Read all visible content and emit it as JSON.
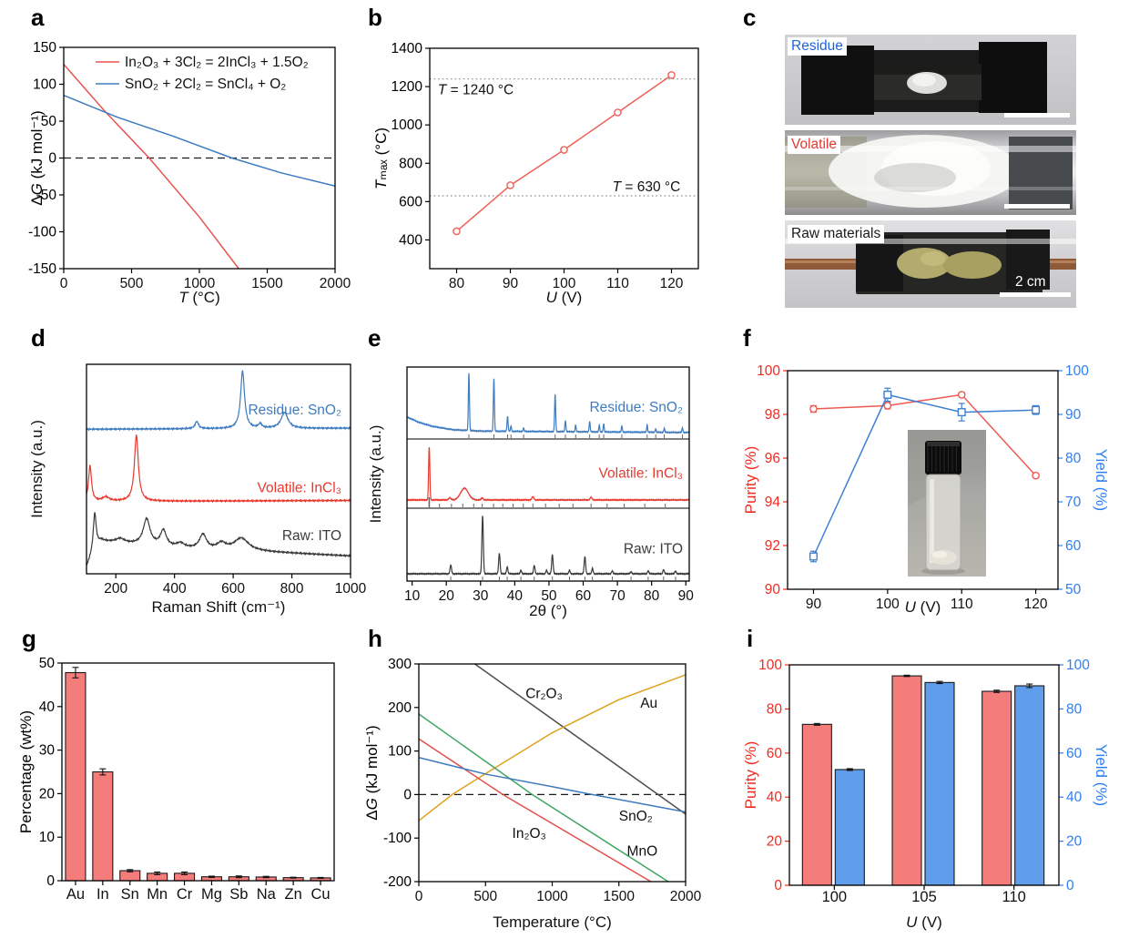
{
  "figure": {
    "panel_labels": {
      "a": "a",
      "b": "b",
      "c": "c",
      "d": "d",
      "e": "e",
      "f": "f",
      "g": "g",
      "h": "h",
      "i": "i"
    }
  },
  "chart_data": {
    "a": {
      "type": "line",
      "xlabel": "*T* (°C)",
      "ylabel": "Δ*G* (kJ mol⁻¹)",
      "xlim": [
        0,
        2000
      ],
      "ylim": [
        -150,
        150
      ],
      "xticks": [
        0,
        500,
        1000,
        1500,
        2000
      ],
      "yticks": [
        -150,
        -100,
        -50,
        0,
        50,
        100,
        150
      ],
      "hlines": [
        {
          "y": 0,
          "style": "dashed",
          "color": "#1a1a1a"
        }
      ],
      "legend": [
        {
          "label": "In₂O₃ + 3Cl₂ = 2InCl₃ + 1.5O₂",
          "color": "#e9534f"
        },
        {
          "label": "SnO₂ + 2Cl₂ = SnCl₄ + O₂",
          "color": "#3e7bbf"
        }
      ],
      "series": [
        {
          "name": "In2O3 chlorination",
          "color": "#e9534f",
          "points": [
            [
              0,
              127
            ],
            [
              300,
              64
            ],
            [
              630,
              0
            ],
            [
              1000,
              -80
            ],
            [
              1290,
              -150
            ]
          ]
        },
        {
          "name": "SnO2 chlorination",
          "color": "#3e7bbf",
          "points": [
            [
              0,
              85
            ],
            [
              400,
              55
            ],
            [
              800,
              30
            ],
            [
              1240,
              0
            ],
            [
              1600,
              -20
            ],
            [
              2000,
              -38
            ]
          ]
        }
      ]
    },
    "b": {
      "type": "line",
      "xlabel": "*U* (V)",
      "ylabel": "*T*ₘₐₓ (°C)",
      "xlim": [
        75,
        125
      ],
      "ylim": [
        250,
        1400
      ],
      "xticks": [
        80,
        90,
        100,
        110,
        120
      ],
      "yticks": [
        400,
        600,
        800,
        1000,
        1200,
        1400
      ],
      "hlines": [
        {
          "y": 1240,
          "style": "dotted",
          "color": "#8a8a8a"
        },
        {
          "y": 630,
          "style": "dotted",
          "color": "#8a8a8a"
        }
      ],
      "annotations": [
        {
          "x": 76.5,
          "y": 1160,
          "text": "*T* = 1240 °C"
        },
        {
          "x": 109,
          "y": 655,
          "text": "*T* = 630 °C"
        }
      ],
      "series": [
        {
          "name": "Tmax",
          "color": "#ee6058",
          "marker": "circle",
          "points": [
            [
              80,
              445
            ],
            [
              90,
              685
            ],
            [
              100,
              870
            ],
            [
              110,
              1065
            ],
            [
              120,
              1260
            ]
          ]
        }
      ]
    },
    "c": {
      "type": "photos",
      "photos": [
        {
          "label": "Residue",
          "label_color": "#1f64d8"
        },
        {
          "label": "Volatile",
          "label_color": "#e8362e"
        },
        {
          "label": "Raw materials",
          "label_color": "#1a1a1a"
        }
      ],
      "scale_text": "2 cm"
    },
    "d": {
      "type": "spectra",
      "xlabel": "Raman Shift (cm⁻¹)",
      "ylabel": "Intensity (a.u.)",
      "xlim": [
        100,
        1000
      ],
      "xticks": [
        200,
        400,
        600,
        800,
        1000
      ],
      "traces": [
        {
          "label": "Raw: ITO",
          "color": "#3a3a3a",
          "label_y": 0.16,
          "base": [
            [
              100,
              0.03
            ],
            [
              128,
              0.12
            ],
            [
              150,
              0.155
            ],
            [
              300,
              0.135
            ],
            [
              500,
              0.115
            ],
            [
              700,
              0.105
            ],
            [
              1000,
              0.085
            ]
          ],
          "peaks": [
            [
              128,
              0.17,
              6
            ],
            [
              215,
              0.02,
              18
            ],
            [
              305,
              0.125,
              14
            ],
            [
              362,
              0.075,
              12
            ],
            [
              420,
              0.02,
              15
            ],
            [
              497,
              0.07,
              14
            ],
            [
              560,
              0.03,
              18
            ],
            [
              628,
              0.06,
              30
            ]
          ]
        },
        {
          "label": "Volatile: InCl₃",
          "color": "#e8392f",
          "label_y": 0.39,
          "base": [
            [
              100,
              0.345
            ],
            [
              1000,
              0.35
            ]
          ],
          "peaks": [
            [
              112,
              0.17,
              6
            ],
            [
              166,
              0.02,
              14
            ],
            [
              270,
              0.315,
              8
            ]
          ]
        },
        {
          "label": "Residue: SnO₂",
          "color": "#3e7bbf",
          "label_y": 0.76,
          "base": [
            [
              100,
              0.69
            ],
            [
              1000,
              0.695
            ]
          ],
          "peaks": [
            [
              476,
              0.035,
              7
            ],
            [
              632,
              0.275,
              8
            ],
            [
              692,
              0.02,
              7
            ],
            [
              775,
              0.075,
              14
            ]
          ]
        }
      ]
    },
    "e": {
      "type": "xrd",
      "xlabel": "2θ (°)",
      "ylabel": "Intensity (a.u.)",
      "xlim": [
        8.5,
        91
      ],
      "xticks": [
        10,
        20,
        30,
        40,
        50,
        60,
        70,
        80,
        90
      ],
      "panels": [
        {
          "label": "Residue: SnO₂",
          "color": "#3e7bbf",
          "label_y": 0.62,
          "base": [
            [
              8.5,
              0.3
            ],
            [
              12,
              0.22
            ],
            [
              16,
              0.16
            ],
            [
              22,
              0.11
            ],
            [
              30,
              0.09
            ],
            [
              90,
              0.07
            ]
          ],
          "peaks": [
            [
              26.6,
              0.85,
              0.22
            ],
            [
              33.9,
              0.78,
              0.22
            ],
            [
              37.9,
              0.22,
              0.22
            ],
            [
              38.9,
              0.08,
              0.2
            ],
            [
              42.6,
              0.05,
              0.2
            ],
            [
              51.8,
              0.55,
              0.22
            ],
            [
              54.8,
              0.16,
              0.22
            ],
            [
              57.8,
              0.1,
              0.2
            ],
            [
              61.9,
              0.15,
              0.22
            ],
            [
              64.7,
              0.1,
              0.2
            ],
            [
              66.0,
              0.12,
              0.2
            ],
            [
              71.3,
              0.09,
              0.2
            ],
            [
              78.7,
              0.11,
              0.2
            ],
            [
              81.2,
              0.05,
              0.2
            ],
            [
              83.7,
              0.06,
              0.2
            ],
            [
              89.0,
              0.07,
              0.2
            ]
          ],
          "ref_ticks": [
            26.6,
            33.9,
            37.9,
            38.9,
            42.6,
            51.8,
            54.8,
            57.8,
            61.9,
            64.7,
            66.0,
            71.3,
            78.7,
            81.2,
            83.7,
            89.0
          ]
        },
        {
          "label": "Volatile: InCl₃",
          "color": "#e8392f",
          "label_y": 0.56,
          "base": [
            [
              8.5,
              0.1
            ],
            [
              90,
              0.1
            ]
          ],
          "peaks": [
            [
              15.0,
              0.82,
              0.25
            ],
            [
              21,
              0.03,
              0.5
            ],
            [
              25.3,
              0.18,
              1.6
            ],
            [
              30.5,
              0.03,
              0.4
            ],
            [
              45.3,
              0.05,
              0.4
            ],
            [
              62.3,
              0.04,
              0.4
            ]
          ],
          "ref_ticks": [
            15,
            18,
            21.5,
            24.8,
            28,
            30.5,
            33.8,
            36.5,
            39.5,
            42.5,
            45.3,
            49,
            53,
            57,
            62.3,
            67,
            72,
            78,
            84
          ],
          "ref_tall": 15
        },
        {
          "label": "Raw: ITO",
          "color": "#3a3a3a",
          "label_y": 0.62,
          "base": [
            [
              8.5,
              0.08
            ],
            [
              90,
              0.08
            ]
          ],
          "peaks": [
            [
              21.3,
              0.13,
              0.3
            ],
            [
              30.6,
              0.85,
              0.3
            ],
            [
              35.5,
              0.3,
              0.3
            ],
            [
              37.8,
              0.1,
              0.28
            ],
            [
              41.8,
              0.05,
              0.28
            ],
            [
              45.7,
              0.12,
              0.3
            ],
            [
              49.3,
              0.05,
              0.28
            ],
            [
              51.0,
              0.28,
              0.3
            ],
            [
              56.0,
              0.05,
              0.28
            ],
            [
              60.5,
              0.25,
              0.3
            ],
            [
              62.7,
              0.08,
              0.28
            ],
            [
              68.5,
              0.04,
              0.3
            ],
            [
              74.0,
              0.03,
              0.3
            ],
            [
              79.0,
              0.04,
              0.3
            ],
            [
              83.5,
              0.06,
              0.3
            ],
            [
              87.0,
              0.04,
              0.3
            ]
          ],
          "ref_ticks": [
            21.3,
            30.6,
            35.5,
            37.8,
            41.8,
            45.7,
            51.0,
            56.0,
            60.5,
            62.7,
            68.5,
            74,
            79,
            83.5,
            87
          ]
        }
      ]
    },
    "f": {
      "type": "line",
      "xlabel": "*U* (V)",
      "ylabel": "Purity (%)",
      "y2label": "Yield (%)",
      "xlim": [
        86.5,
        123
      ],
      "ylim": [
        90,
        100
      ],
      "y2lim": [
        50,
        100
      ],
      "xticks": [
        90,
        100,
        110,
        120
      ],
      "yticks": [
        90,
        92,
        94,
        96,
        98,
        100
      ],
      "y2ticks": [
        50,
        60,
        70,
        80,
        90,
        100
      ],
      "axis_color": "#f42a1f",
      "axis2_color": "#2e7ff2",
      "series": [
        {
          "name": "Purity",
          "color": "#ee5a52",
          "marker": "circle",
          "axis": "left",
          "points": [
            [
              90,
              98.25
            ],
            [
              100,
              98.4
            ],
            [
              110,
              98.9
            ],
            [
              120,
              95.2
            ]
          ],
          "errors": [
            0.15,
            0.15,
            0.1,
            0.1
          ]
        },
        {
          "name": "Yield",
          "color": "#3e7fd2",
          "marker": "square",
          "axis": "right",
          "points": [
            [
              90,
              57.5
            ],
            [
              100,
              94.5
            ],
            [
              110,
              90.5
            ],
            [
              120,
              91
            ]
          ],
          "errors": [
            1.2,
            1.5,
            2,
            1
          ]
        }
      ],
      "inset": "vial with white powder"
    },
    "g": {
      "type": "bar",
      "ylabel": "Percentage (wt%)",
      "categories": [
        "Au",
        "In",
        "Sn",
        "Mn",
        "Cr",
        "Mg",
        "Sb",
        "Na",
        "Zn",
        "Cu"
      ],
      "ylim": [
        0,
        50
      ],
      "yticks": [
        0,
        10,
        20,
        30,
        40,
        50
      ],
      "series": [
        {
          "name": "wt%",
          "color": "#f47d7c",
          "values": [
            47.8,
            25.0,
            2.3,
            1.7,
            1.7,
            0.9,
            0.9,
            0.85,
            0.7,
            0.65
          ],
          "errors": [
            1.2,
            0.7,
            0.25,
            0.3,
            0.3,
            0.15,
            0.2,
            0.15,
            0.1,
            0.1
          ]
        }
      ]
    },
    "h": {
      "type": "line",
      "xlabel": "Temperature (°C)",
      "ylabel": "Δ*G* (kJ mol⁻¹)",
      "xlim": [
        0,
        2000
      ],
      "ylim": [
        -200,
        300
      ],
      "xticks": [
        0,
        500,
        1000,
        1500,
        2000
      ],
      "yticks": [
        -200,
        -100,
        0,
        100,
        200,
        300
      ],
      "hlines": [
        {
          "y": 0,
          "style": "dashed",
          "color": "#1a1a1a"
        }
      ],
      "annotations": [
        {
          "x": 800,
          "y": 222,
          "text": "Cr₂O₃"
        },
        {
          "x": 1660,
          "y": 200,
          "text": "Au"
        },
        {
          "x": 1500,
          "y": -60,
          "text": "SnO₂"
        },
        {
          "x": 700,
          "y": -100,
          "text": "In₂O₃"
        },
        {
          "x": 1560,
          "y": -140,
          "text": "MnO"
        }
      ],
      "series": [
        {
          "name": "Cr₂O₃",
          "color": "#4d4d4d",
          "points": [
            [
              420,
              300
            ],
            [
              2000,
              -45
            ]
          ]
        },
        {
          "name": "Au",
          "color": "#dfa11d",
          "points": [
            [
              0,
              -60
            ],
            [
              250,
              0
            ],
            [
              500,
              48
            ],
            [
              1000,
              142
            ],
            [
              1500,
              218
            ],
            [
              2000,
              275
            ]
          ]
        },
        {
          "name": "MnO",
          "color": "#41a564",
          "points": [
            [
              0,
              185
            ],
            [
              850,
              0
            ],
            [
              1870,
              -200
            ]
          ]
        },
        {
          "name": "In₂O₃",
          "color": "#e4504c",
          "points": [
            [
              0,
              128
            ],
            [
              630,
              0
            ],
            [
              1740,
              -200
            ]
          ]
        },
        {
          "name": "SnO₂",
          "color": "#3e7bbf",
          "points": [
            [
              0,
              85
            ],
            [
              500,
              47
            ],
            [
              1000,
              18
            ],
            [
              1300,
              0
            ],
            [
              2000,
              -40
            ]
          ]
        }
      ]
    },
    "i": {
      "type": "bar",
      "xlabel": "*U* (V)",
      "ylabel": "Purity (%)",
      "y2label": "Yield (%)",
      "categories": [
        "100",
        "105",
        "110"
      ],
      "ylim": [
        0,
        100
      ],
      "yticks": [
        0,
        20,
        40,
        60,
        80,
        100
      ],
      "y2ticks": [
        0,
        20,
        40,
        60,
        80,
        100
      ],
      "axis_color": "#f42a1f",
      "axis2_color": "#2e7ff2",
      "series": [
        {
          "name": "Purity",
          "color": "#f47d7c",
          "values": [
            73,
            95,
            88
          ],
          "errors": [
            0.4,
            0.3,
            0.5
          ]
        },
        {
          "name": "Yield",
          "color": "#5f9cea",
          "values": [
            52.5,
            92,
            90.5
          ],
          "errors": [
            0.4,
            0.5,
            0.8
          ]
        }
      ]
    }
  }
}
